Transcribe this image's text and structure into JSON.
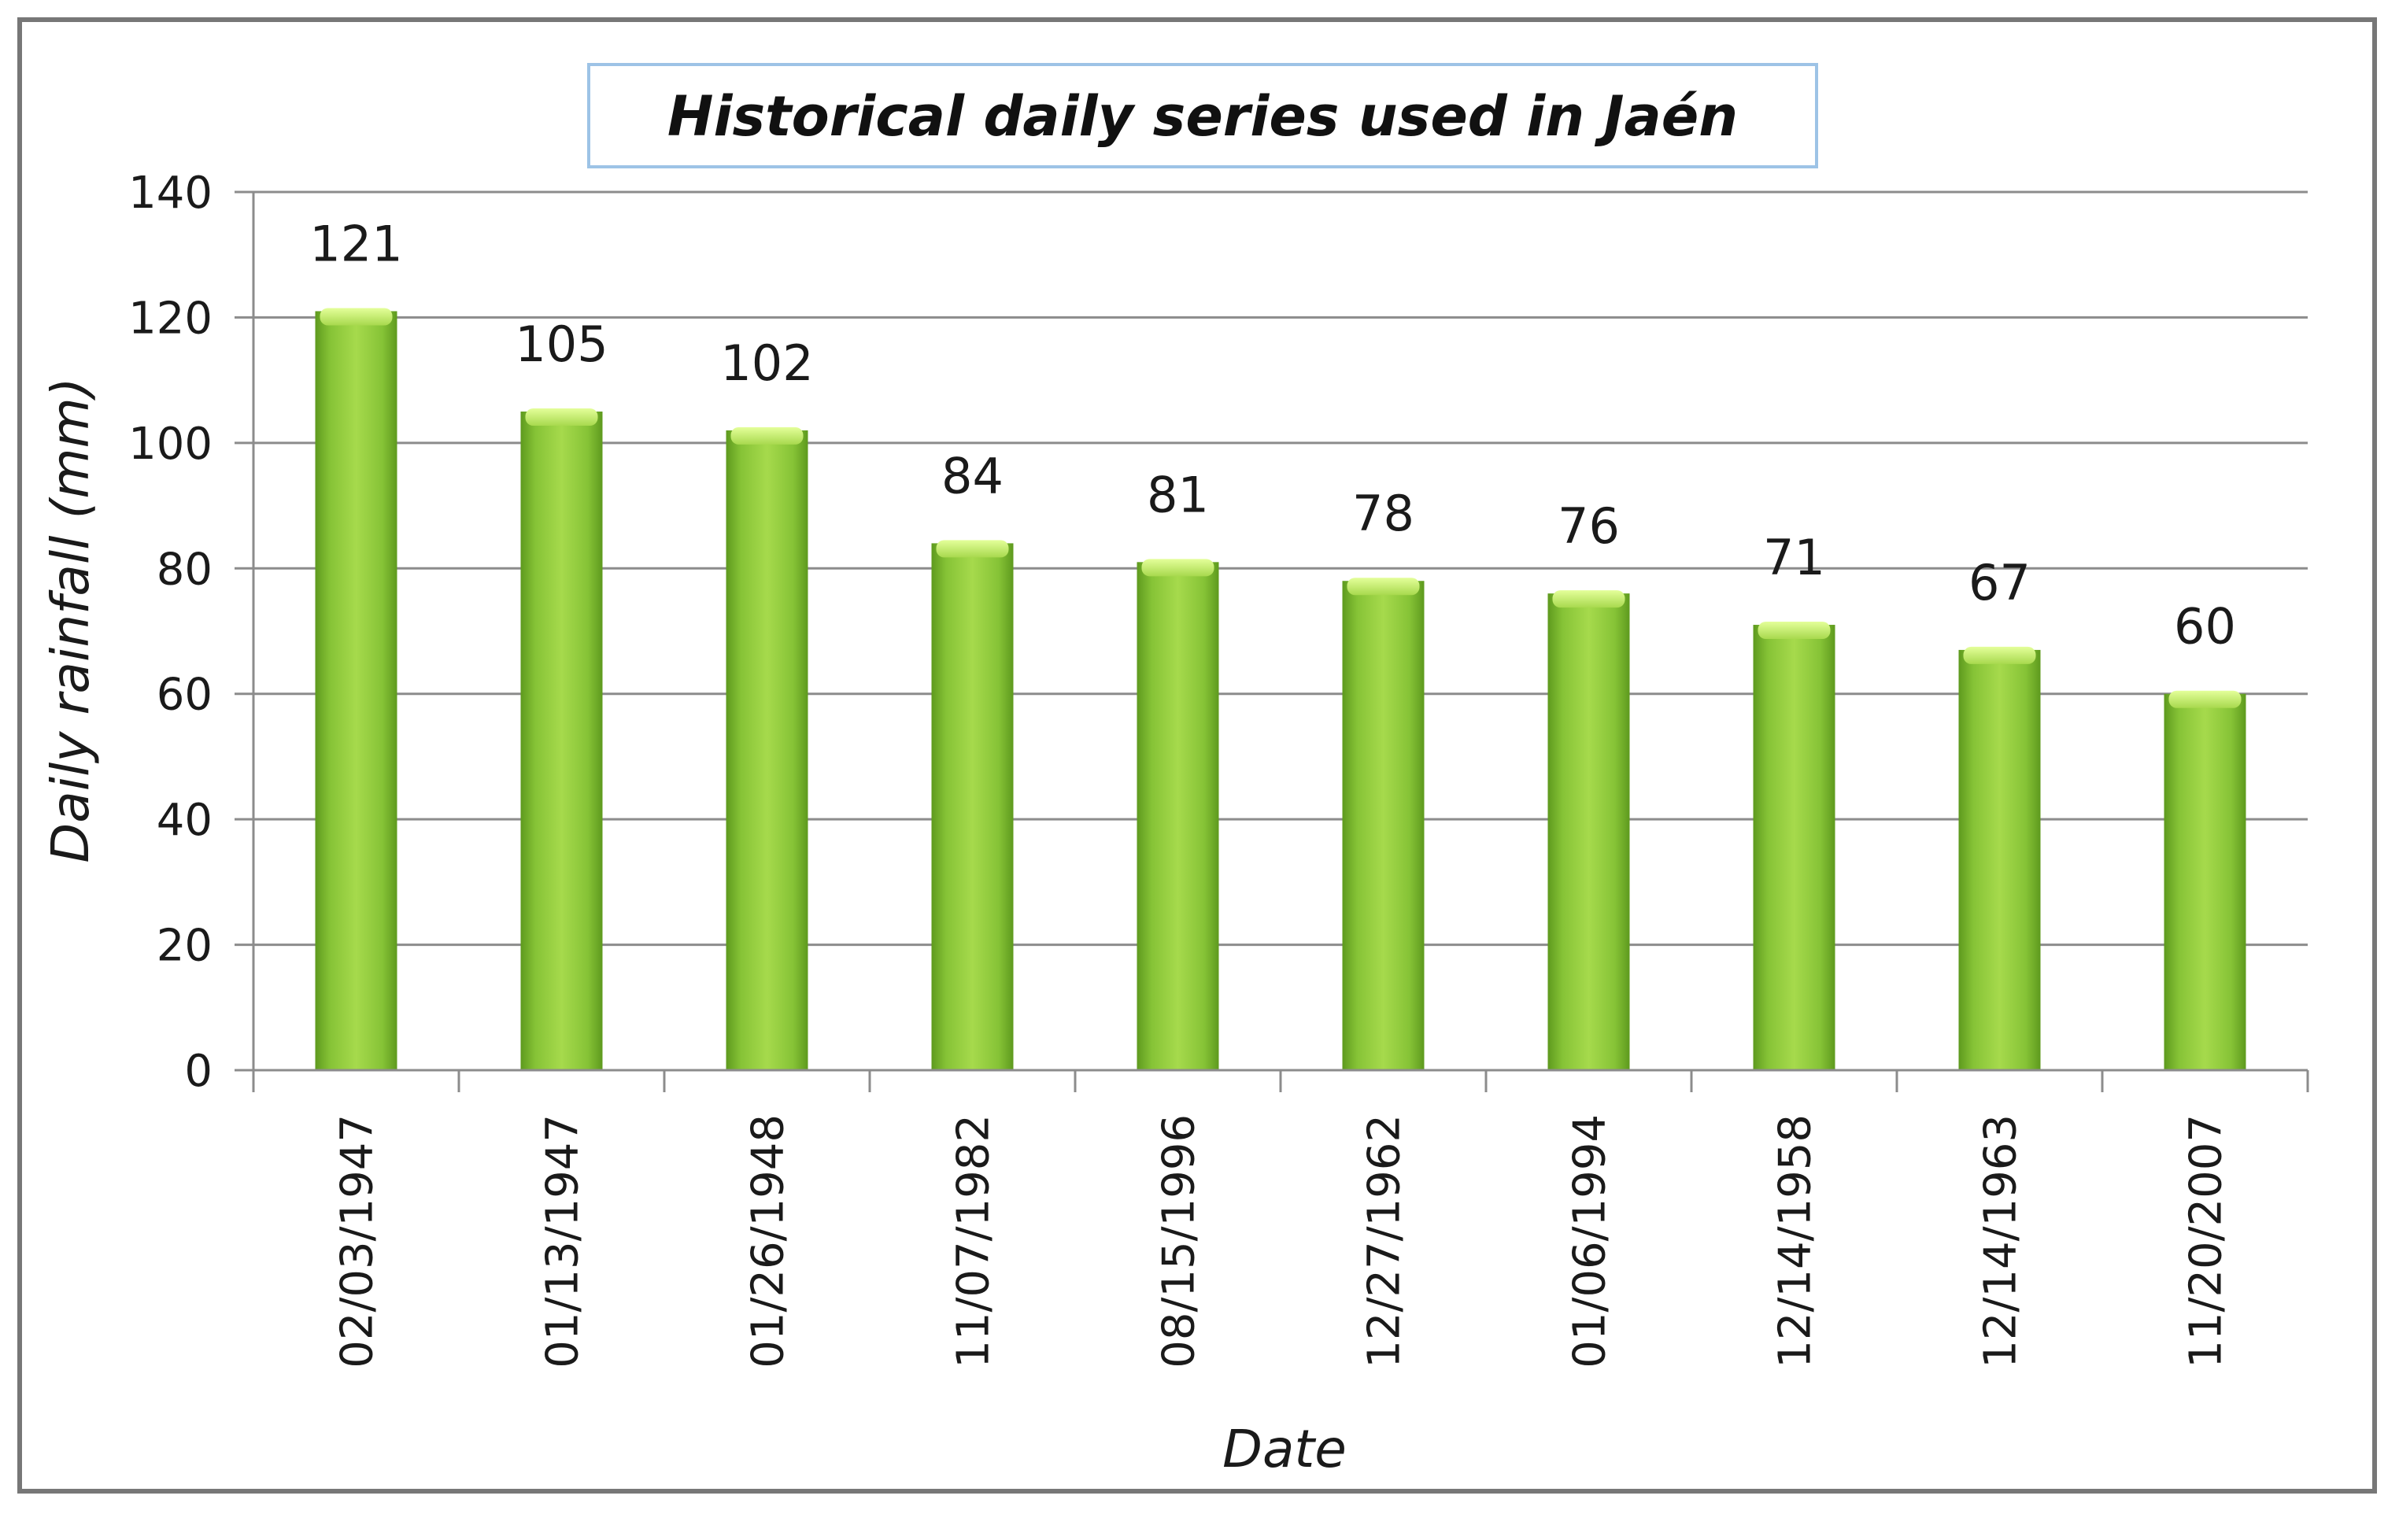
{
  "chart_data": {
    "type": "bar",
    "title": "Historical daily series used in Jaén",
    "xlabel": "Date",
    "ylabel": "Daily rainfall (mm)",
    "ylim": [
      0,
      140
    ],
    "yticks": [
      0,
      20,
      40,
      60,
      80,
      100,
      120,
      140
    ],
    "grid": true,
    "legend": "none",
    "categories": [
      "02/03/1947",
      "01/13/1947",
      "01/26/1948",
      "11/07/1982",
      "08/15/1996",
      "12/27/1962",
      "01/06/1994",
      "12/14/1958",
      "12/14/1963",
      "11/20/2007"
    ],
    "values": [
      121,
      105,
      102,
      84,
      81,
      78,
      76,
      71,
      67,
      60
    ],
    "bar_color": "#7DBB2E",
    "bar_highlight": "#C8F070",
    "bar_shadow": "#4E8A16",
    "gridline_color": "#8C8C8C",
    "title_border_color": "#9DC3E6"
  }
}
